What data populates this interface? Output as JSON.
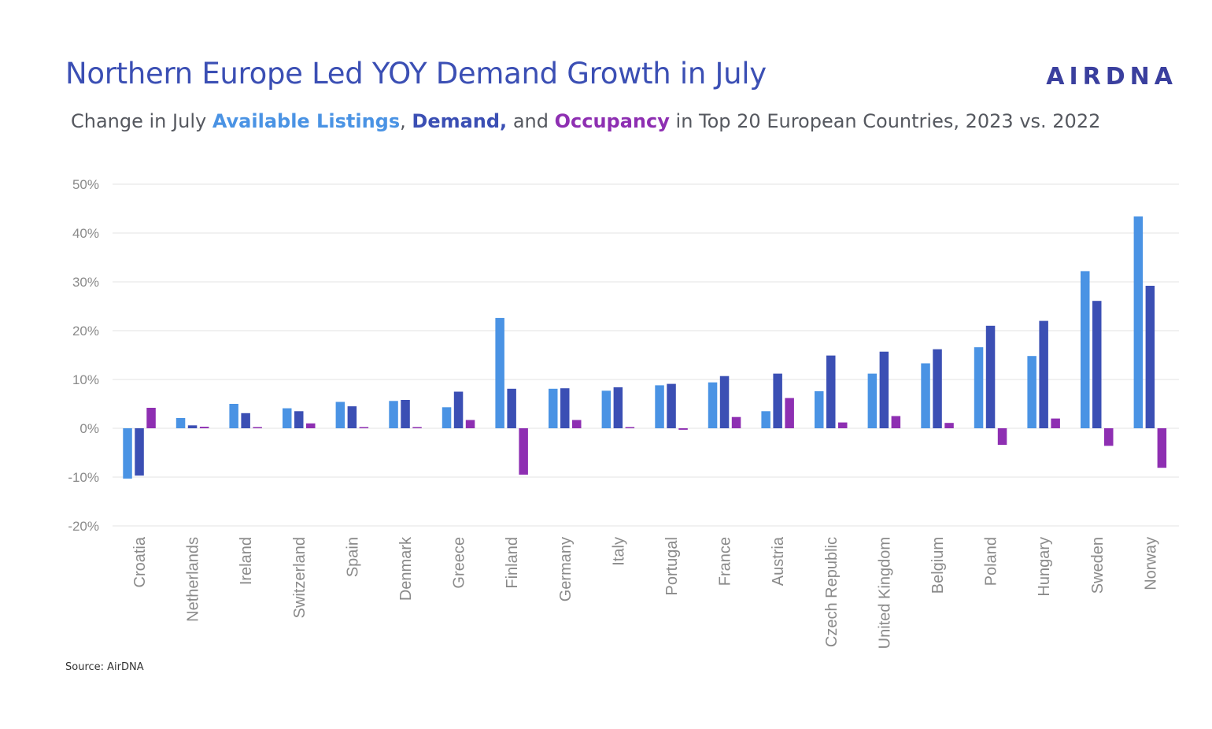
{
  "header": {
    "title": "Northern Europe Led YOY Demand Growth in July",
    "logo_text": "AIRDNA",
    "subtitle_prefix": "Change in July ",
    "subtitle_listings": "Available Listings",
    "subtitle_sep1": ", ",
    "subtitle_demand": "Demand,",
    "subtitle_sep2": " and ",
    "subtitle_occupancy": "Occupancy",
    "subtitle_suffix": " in Top 20 European Countries, 2023 vs. 2022"
  },
  "footer": {
    "source": "Source: AirDNA"
  },
  "colors": {
    "listings": "#4a93e4",
    "demand": "#3b4fb4",
    "occupancy": "#8e2fb2",
    "grid": "#e3e3e3",
    "tick": "#8a8a8a",
    "title": "#3b4fb4"
  },
  "chart_data": {
    "type": "bar",
    "categories": [
      "Croatia",
      "Netherlands",
      "Ireland",
      "Switzerland",
      "Spain",
      "Denmark",
      "Greece",
      "Finland",
      "Germany",
      "Italy",
      "Portugal",
      "France",
      "Austria",
      "Czech Republic",
      "United Kingdom",
      "Belgium",
      "Poland",
      "Hungary",
      "Sweden",
      "Norway"
    ],
    "series": [
      {
        "name": "Available Listings",
        "color": "#4a93e4",
        "values": [
          -10.3,
          2.1,
          5.0,
          4.1,
          5.4,
          5.6,
          4.3,
          22.6,
          8.1,
          7.7,
          8.8,
          9.4,
          3.5,
          7.6,
          11.2,
          13.3,
          16.6,
          14.8,
          32.2,
          43.4
        ]
      },
      {
        "name": "Demand",
        "color": "#3b4fb4",
        "values": [
          -9.7,
          0.6,
          3.1,
          3.5,
          4.5,
          5.8,
          7.5,
          8.1,
          8.2,
          8.4,
          9.1,
          10.7,
          11.2,
          14.9,
          15.7,
          16.2,
          21.0,
          22.0,
          26.1,
          29.2
        ]
      },
      {
        "name": "Occupancy",
        "color": "#8e2fb2",
        "values": [
          4.2,
          0.3,
          0.0,
          1.0,
          0.2,
          0.0,
          1.7,
          -9.5,
          1.7,
          0.2,
          -0.3,
          2.3,
          6.2,
          1.2,
          2.5,
          1.1,
          -3.4,
          2.0,
          -3.6,
          -8.1
        ]
      }
    ],
    "yticks": [
      "50%",
      "40%",
      "30%",
      "20%",
      "10%",
      "0%",
      "-10%",
      "-20%"
    ],
    "ylim": [
      -20,
      50
    ],
    "grid": true,
    "legend": "none"
  }
}
